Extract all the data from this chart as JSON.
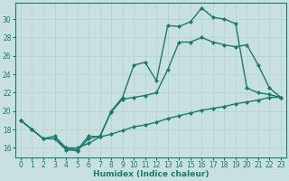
{
  "xlabel": "Humidex (Indice chaleur)",
  "xlim": [
    -0.5,
    23.5
  ],
  "ylim": [
    15.0,
    31.8
  ],
  "xticks": [
    0,
    1,
    2,
    3,
    4,
    5,
    6,
    7,
    8,
    9,
    10,
    11,
    12,
    13,
    14,
    15,
    16,
    17,
    18,
    19,
    20,
    21,
    22,
    23
  ],
  "yticks": [
    16,
    18,
    20,
    22,
    24,
    26,
    28,
    30
  ],
  "bg_color": "#c8e0e0",
  "line_color": "#1a7a6e",
  "grid_color": "#b8d4d4",
  "line1_x": [
    0,
    1,
    2,
    3,
    4,
    5,
    6,
    7,
    8,
    9,
    10,
    11,
    12,
    13,
    14,
    15,
    16,
    17,
    18,
    19,
    20,
    21,
    22,
    23
  ],
  "line1_y": [
    19.0,
    18.0,
    17.0,
    17.0,
    16.0,
    15.8,
    17.3,
    17.2,
    20.0,
    21.5,
    25.0,
    25.3,
    23.3,
    29.3,
    29.2,
    29.7,
    31.2,
    30.2,
    30.0,
    29.5,
    22.5,
    22.0,
    21.8,
    21.5
  ],
  "line2_x": [
    0,
    1,
    2,
    3,
    4,
    5,
    6,
    7,
    8,
    9,
    10,
    11,
    12,
    13,
    14,
    15,
    16,
    17,
    18,
    19,
    20,
    21,
    22,
    23
  ],
  "line2_y": [
    19.0,
    18.0,
    17.0,
    17.0,
    15.8,
    15.7,
    17.0,
    17.3,
    19.9,
    21.3,
    21.5,
    21.7,
    22.0,
    24.5,
    27.5,
    27.5,
    28.0,
    27.5,
    27.2,
    27.0,
    27.2,
    25.0,
    22.5,
    21.5
  ],
  "line3_x": [
    0,
    1,
    2,
    3,
    4,
    5,
    6,
    7,
    8,
    9,
    10,
    11,
    12,
    13,
    14,
    15,
    16,
    17,
    18,
    19,
    20,
    21,
    22,
    23
  ],
  "line3_y": [
    19.0,
    18.0,
    17.0,
    17.3,
    16.0,
    16.0,
    16.5,
    17.2,
    17.5,
    17.9,
    18.3,
    18.5,
    18.8,
    19.2,
    19.5,
    19.8,
    20.1,
    20.3,
    20.5,
    20.8,
    21.0,
    21.2,
    21.5,
    21.5
  ]
}
